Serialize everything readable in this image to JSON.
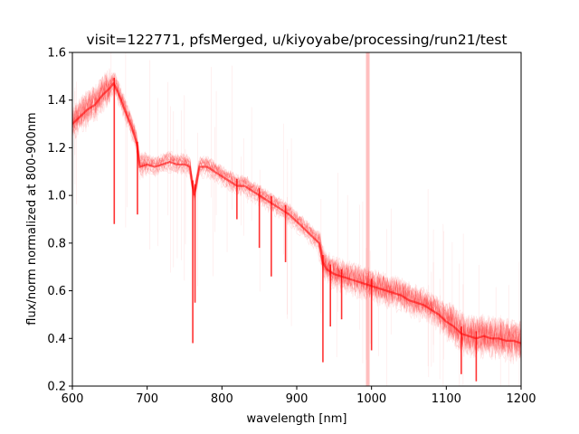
{
  "chart_data": {
    "type": "line",
    "title": "visit=122771, pfsMerged, u/kiyoyabe/processing/run21/test",
    "xlabel": "wavelength [nm]",
    "ylabel": "flux/norm normalized at 800-900nm",
    "xlim": [
      600,
      1200
    ],
    "ylim": [
      0.2,
      1.6
    ],
    "xticks": [
      600,
      700,
      800,
      900,
      1000,
      1100,
      1200
    ],
    "yticks": [
      0.2,
      0.4,
      0.6,
      0.8,
      1.0,
      1.2,
      1.4,
      1.6
    ],
    "xtick_labels": [
      "600",
      "700",
      "800",
      "900",
      "1000",
      "1100",
      "1200"
    ],
    "ytick_labels": [
      "0.2",
      "0.4",
      "0.6",
      "0.8",
      "1.0",
      "1.2",
      "1.4",
      "1.6"
    ],
    "grid": false,
    "legend": "none",
    "series_color": "#ff0000",
    "series": [
      {
        "x": [
          600,
          610,
          620,
          630,
          640,
          650,
          655,
          660,
          670,
          680,
          686,
          690,
          700,
          710,
          720,
          730,
          740,
          750,
          757,
          760,
          763,
          770,
          780,
          790,
          800,
          810,
          820,
          830,
          840,
          850,
          860,
          870,
          880,
          890,
          900,
          910,
          920,
          930,
          935,
          940,
          950,
          960,
          970,
          980,
          990,
          1000,
          1010,
          1020,
          1030,
          1040,
          1050,
          1060,
          1070,
          1080,
          1090,
          1100,
          1110,
          1120,
          1130,
          1140,
          1150,
          1160,
          1170,
          1180,
          1190,
          1200
        ],
        "y": [
          1.3,
          1.33,
          1.36,
          1.38,
          1.42,
          1.45,
          1.47,
          1.44,
          1.36,
          1.28,
          1.22,
          1.12,
          1.13,
          1.12,
          1.13,
          1.14,
          1.13,
          1.13,
          1.12,
          1.05,
          1.0,
          1.12,
          1.12,
          1.1,
          1.08,
          1.06,
          1.04,
          1.04,
          1.02,
          1.0,
          0.98,
          0.96,
          0.94,
          0.92,
          0.89,
          0.86,
          0.83,
          0.8,
          0.72,
          0.69,
          0.67,
          0.66,
          0.65,
          0.64,
          0.63,
          0.62,
          0.61,
          0.6,
          0.59,
          0.58,
          0.56,
          0.55,
          0.54,
          0.52,
          0.5,
          0.47,
          0.45,
          0.42,
          0.41,
          0.4,
          0.41,
          0.4,
          0.4,
          0.39,
          0.39,
          0.38
        ]
      }
    ],
    "absorption_features": [
      {
        "x": 656,
        "depth_to": 0.88
      },
      {
        "x": 687,
        "depth_to": 0.92
      },
      {
        "x": 761,
        "depth_to": 0.38
      },
      {
        "x": 764,
        "depth_to": 0.55
      },
      {
        "x": 820,
        "depth_to": 0.9
      },
      {
        "x": 850,
        "depth_to": 0.78
      },
      {
        "x": 866,
        "depth_to": 0.66
      },
      {
        "x": 885,
        "depth_to": 0.72
      },
      {
        "x": 935,
        "depth_to": 0.3
      },
      {
        "x": 945,
        "depth_to": 0.45
      },
      {
        "x": 960,
        "depth_to": 0.48
      },
      {
        "x": 1000,
        "depth_to": 0.35
      },
      {
        "x": 1120,
        "depth_to": 0.25
      },
      {
        "x": 1140,
        "depth_to": 0.22
      }
    ],
    "vertical_band": {
      "x": 995,
      "ymin": 0.2,
      "ymax": 1.6
    }
  }
}
